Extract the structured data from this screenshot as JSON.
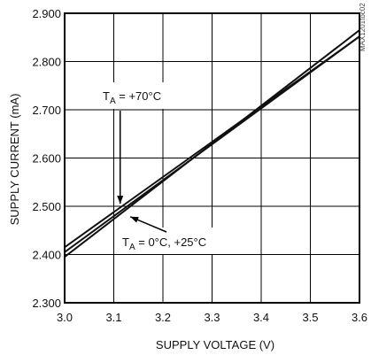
{
  "chart_data": {
    "type": "line",
    "title": "",
    "xlabel": "SUPPLY VOLTAGE (V)",
    "ylabel": "SUPPLY CURRENT (mA)",
    "xlim": [
      3.0,
      3.6
    ],
    "ylim": [
      2.3,
      2.9
    ],
    "x_ticks": [
      "3.0",
      "3.1",
      "3.2",
      "3.3",
      "3.4",
      "3.5",
      "3.6"
    ],
    "y_ticks": [
      "2.300",
      "2.400",
      "2.500",
      "2.600",
      "2.700",
      "2.800",
      "2.900"
    ],
    "grid": true,
    "legend": "none",
    "series": [
      {
        "x": [
          3.0,
          3.6
        ],
        "y": [
          2.395,
          2.865
        ]
      },
      {
        "x": [
          3.0,
          3.6
        ],
        "y": [
          2.405,
          2.852
        ]
      },
      {
        "x": [
          3.0,
          3.6
        ],
        "y": [
          2.415,
          2.852
        ]
      }
    ],
    "annotations": [
      {
        "main": "T",
        "sub": "A",
        "rest": " = +70°C",
        "points_to": [
          3.113,
          2.498
        ]
      },
      {
        "main": "T",
        "sub": "A",
        "rest": " = 0°C, +25°C",
        "points_to": [
          3.13,
          2.482
        ]
      }
    ],
    "watermark": "MAX1201toc02",
    "line_color": "#111111",
    "grid_color": "#000000"
  }
}
